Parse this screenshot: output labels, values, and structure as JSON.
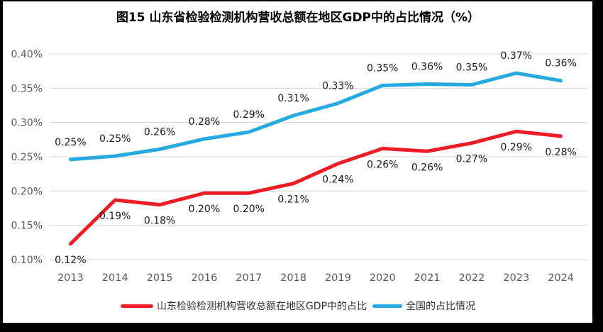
{
  "colors": {
    "background": "#FFFFFF",
    "frame": "#000000",
    "grid": "#D9D9D9",
    "tick_text": "#595959",
    "data_label_text": "#1A1A1A",
    "title_text": "#000000"
  },
  "chart_data": {
    "type": "line",
    "title": "图15  山东省检验检测机构营收总额在地区GDP中的占比情况（%）",
    "categories": [
      "2013",
      "2014",
      "2015",
      "2016",
      "2017",
      "2018",
      "2019",
      "2020",
      "2021",
      "2022",
      "2023",
      "2024"
    ],
    "series": [
      {
        "name": "山东检验检测机构营收总额在地区GDP中的占比",
        "color": "#EF1C23",
        "values": [
          0.12,
          0.19,
          0.18,
          0.2,
          0.2,
          0.21,
          0.24,
          0.26,
          0.26,
          0.27,
          0.29,
          0.28
        ],
        "labels": [
          "0.12%",
          "0.19%",
          "0.18%",
          "0.20%",
          "0.20%",
          "0.21%",
          "0.24%",
          "0.26%",
          "0.26%",
          "0.27%",
          "0.29%",
          "0.28%"
        ],
        "plotted": [
          0.123,
          0.187,
          0.18,
          0.197,
          0.197,
          0.211,
          0.24,
          0.262,
          0.258,
          0.27,
          0.287,
          0.28
        ],
        "label_side": "below"
      },
      {
        "name": "全国的占比情况",
        "color": "#25A9E0",
        "values": [
          0.25,
          0.25,
          0.26,
          0.28,
          0.29,
          0.31,
          0.33,
          0.35,
          0.36,
          0.35,
          0.37,
          0.36
        ],
        "labels": [
          "0.25%",
          "0.25%",
          "0.26%",
          "0.28%",
          "0.29%",
          "0.31%",
          "0.33%",
          "0.35%",
          "0.36%",
          "0.35%",
          "0.37%",
          "0.36%"
        ],
        "plotted": [
          0.246,
          0.251,
          0.261,
          0.276,
          0.286,
          0.31,
          0.328,
          0.354,
          0.356,
          0.355,
          0.372,
          0.361
        ],
        "label_side": "above"
      }
    ],
    "xlabel": "",
    "ylabel": "",
    "ylim": [
      0.1,
      0.4
    ],
    "ytick_step": 0.05,
    "ytick_labels": [
      "0.10%",
      "0.15%",
      "0.20%",
      "0.25%",
      "0.30%",
      "0.35%",
      "0.40%"
    ],
    "grid": true,
    "legend_position": "bottom"
  }
}
